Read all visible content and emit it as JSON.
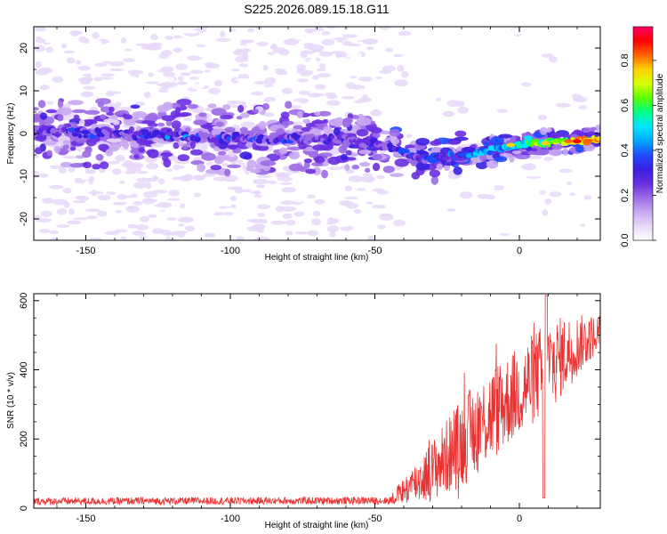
{
  "title": "S225.2026.089.15.18.G11",
  "colors": {
    "snr_line": "#e83232",
    "colormap": [
      "#ffffff",
      "#e8d8fa",
      "#c9a8f2",
      "#9c6ae6",
      "#6a2de0",
      "#3a1fe0",
      "#1f4cff",
      "#00aaff",
      "#00e6ff",
      "#00ff88",
      "#5cff00",
      "#d8ff00",
      "#ffd000",
      "#ff6600",
      "#ff0000",
      "#ff0066"
    ]
  },
  "chart_data": [
    {
      "type": "heatmap",
      "name": "spectrogram",
      "xlabel": "Height of straight line (km)",
      "ylabel": "Frequency (Hz)",
      "xlim": [
        -168,
        28
      ],
      "ylim": [
        -25,
        25
      ],
      "xticks": [
        -150,
        -100,
        -50,
        0
      ],
      "yticks": [
        -20,
        -10,
        0,
        10,
        20
      ],
      "colorbar": {
        "label": "Normalized spectral amplitude",
        "range": [
          0.0,
          0.95
        ],
        "ticks": [
          0.0,
          0.2,
          0.4,
          0.6,
          0.8
        ]
      },
      "ridge": {
        "description_points": [
          {
            "x": -168,
            "y": 0.5
          },
          {
            "x": -100,
            "y": -1
          },
          {
            "x": -60,
            "y": -1.5
          },
          {
            "x": -45,
            "y": -3
          },
          {
            "x": -35,
            "y": -6
          },
          {
            "x": -20,
            "y": -5
          },
          {
            "x": -10,
            "y": -4
          },
          {
            "x": 0,
            "y": -2.5
          },
          {
            "x": 10,
            "y": -2
          },
          {
            "x": 27,
            "y": -1.5
          }
        ]
      }
    },
    {
      "type": "line",
      "name": "snr",
      "xlabel": "Height of straight line (km)",
      "ylabel": "SNR (10 * v/v)",
      "xlim": [
        -168,
        28
      ],
      "ylim": [
        0,
        620
      ],
      "xticks": [
        -150,
        -100,
        -50,
        0
      ],
      "yticks": [
        0,
        200,
        400,
        600
      ],
      "envelope": [
        {
          "x": -168,
          "mean": 20,
          "noise": 12
        },
        {
          "x": -45,
          "mean": 22,
          "noise": 12
        },
        {
          "x": -40,
          "mean": 50,
          "noise": 40
        },
        {
          "x": -30,
          "mean": 110,
          "noise": 90
        },
        {
          "x": -20,
          "mean": 190,
          "noise": 130
        },
        {
          "x": -10,
          "mean": 270,
          "noise": 140
        },
        {
          "x": 0,
          "mean": 340,
          "noise": 130
        },
        {
          "x": 10,
          "mean": 410,
          "noise": 140
        },
        {
          "x": 20,
          "mean": 470,
          "noise": 90
        },
        {
          "x": 28,
          "mean": 510,
          "noise": 50
        }
      ]
    }
  ]
}
